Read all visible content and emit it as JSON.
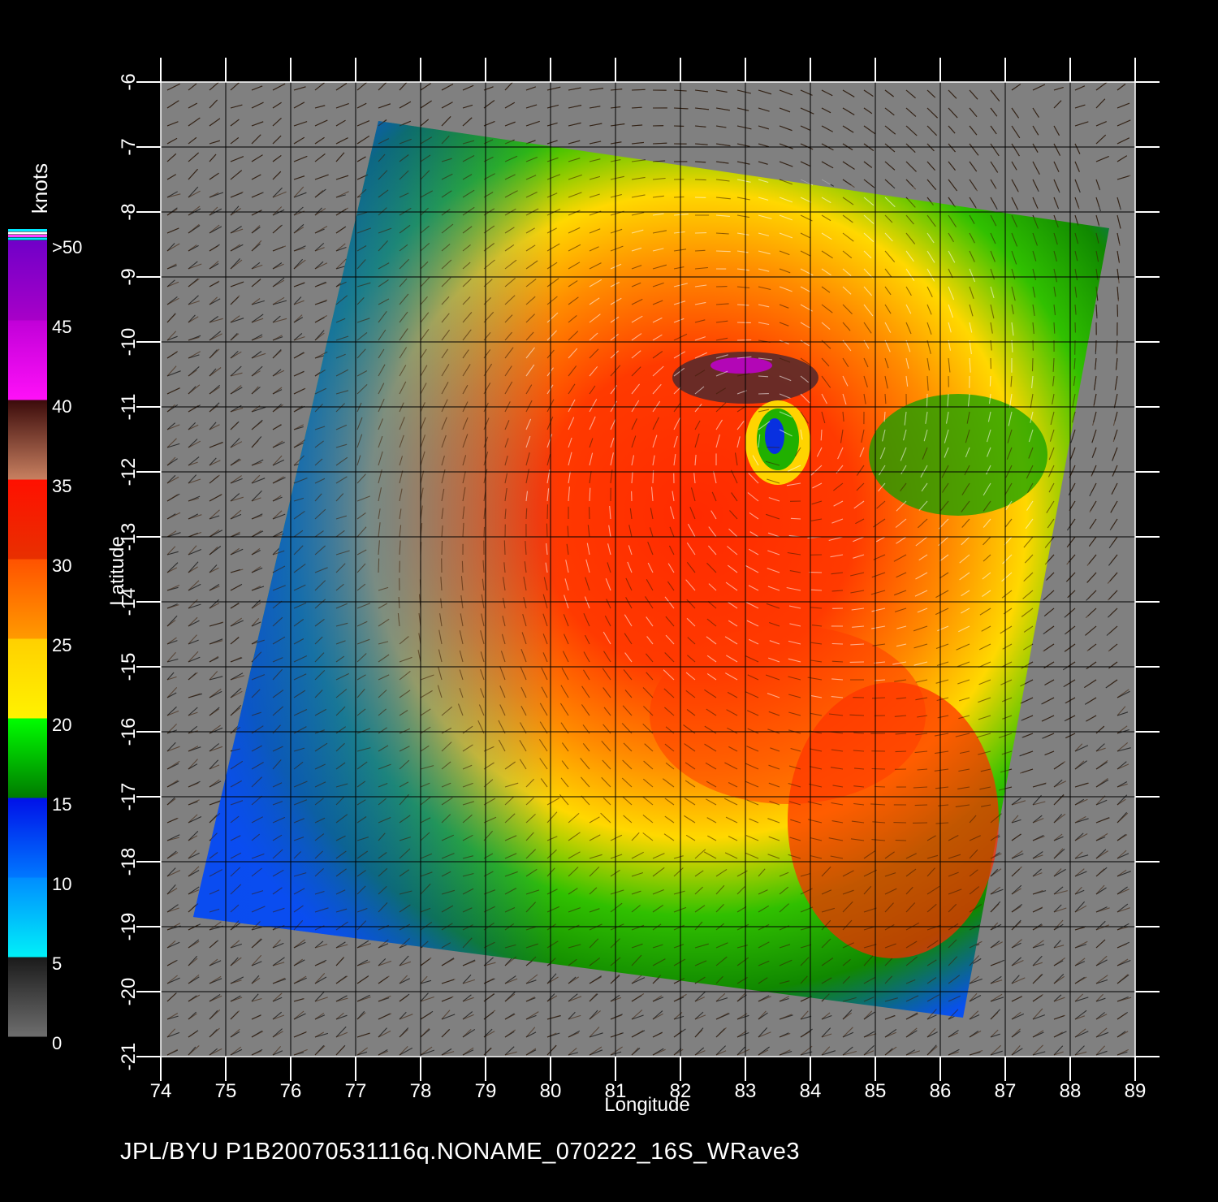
{
  "map": {
    "x_axis": {
      "title": "Longitude",
      "ticks": [
        "74",
        "75",
        "76",
        "77",
        "78",
        "79",
        "80",
        "81",
        "82",
        "83",
        "84",
        "85",
        "86",
        "87",
        "88",
        "89"
      ]
    },
    "y_axis": {
      "title": "Latitude",
      "ticks": [
        "-6",
        "-7",
        "-8",
        "-9",
        "-10",
        "-11",
        "-12",
        "-13",
        "-14",
        "-15",
        "-16",
        "-17",
        "-18",
        "-19",
        "-20",
        "-21"
      ]
    },
    "swath_corners_lonlat": [
      [
        77.35,
        -6.6
      ],
      [
        88.6,
        -8.25
      ],
      [
        86.35,
        -20.4
      ],
      [
        74.5,
        -18.85
      ]
    ],
    "storm_eye_lonlat": [
      83.5,
      -11.55
    ],
    "background_color": "#808080"
  },
  "legend": {
    "title": "knots",
    "labels": [
      ">50",
      "45",
      "40",
      "35",
      "30",
      "25",
      "20",
      "15",
      "10",
      "5",
      "0"
    ],
    "bands": [
      {
        "from": 0,
        "to": 5,
        "colors": [
          "#6e6e6e",
          "#1a1a1a"
        ]
      },
      {
        "from": 5,
        "to": 10,
        "colors": [
          "#00f0f8",
          "#008cff"
        ]
      },
      {
        "from": 10,
        "to": 15,
        "colors": [
          "#0078ff",
          "#0010e8"
        ]
      },
      {
        "from": 15,
        "to": 20,
        "colors": [
          "#007a00",
          "#00ff00"
        ]
      },
      {
        "from": 20,
        "to": 25,
        "colors": [
          "#fff200",
          "#ffd000"
        ]
      },
      {
        "from": 25,
        "to": 30,
        "colors": [
          "#ff9a00",
          "#ff5200"
        ]
      },
      {
        "from": 30,
        "to": 35,
        "colors": [
          "#e83000",
          "#ff1000"
        ]
      },
      {
        "from": 35,
        "to": 40,
        "colors": [
          "#c88060",
          "#3a0a0a"
        ]
      },
      {
        "from": 40,
        "to": 45,
        "colors": [
          "#ff10f8",
          "#c000d8"
        ]
      },
      {
        "from": 45,
        "to": 50,
        "colors": [
          "#a800c8",
          "#7000c8"
        ]
      }
    ]
  },
  "footer": {
    "caption": "JPL/BYU  P1B20070531116q.NONAME_070222_16S_WRave3"
  }
}
